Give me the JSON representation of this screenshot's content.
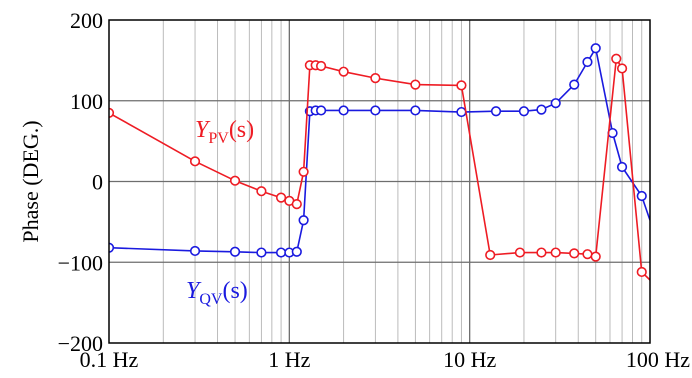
{
  "chart_data": {
    "type": "line",
    "title": "",
    "xlabel": "",
    "ylabel": "Phase (DEG.)",
    "x_scale": "log",
    "xlim": [
      0.1,
      100
    ],
    "ylim": [
      -200,
      200
    ],
    "grid": true,
    "x_ticks": [
      {
        "value": 0.1,
        "label": "0.1 Hz"
      },
      {
        "value": 1,
        "label": "1 Hz"
      },
      {
        "value": 10,
        "label": "10 Hz"
      },
      {
        "value": 100,
        "label": "100 Hz"
      }
    ],
    "y_ticks": [
      {
        "value": -200,
        "label": "−200"
      },
      {
        "value": -100,
        "label": "−100"
      },
      {
        "value": 0,
        "label": "0"
      },
      {
        "value": 100,
        "label": "100"
      },
      {
        "value": 200,
        "label": "200"
      }
    ],
    "series": [
      {
        "name": "YPV(s)",
        "label_parts": {
          "base": "Y",
          "sub": "PV",
          "arg": "(s)"
        },
        "color": "#ee1c24",
        "points": [
          [
            0.1,
            85
          ],
          [
            0.3,
            25
          ],
          [
            0.5,
            1
          ],
          [
            0.7,
            -12
          ],
          [
            0.9,
            -20
          ],
          [
            1.0,
            -24
          ],
          [
            1.1,
            -28
          ],
          [
            1.2,
            12
          ],
          [
            1.3,
            144
          ],
          [
            1.4,
            144
          ],
          [
            1.5,
            143
          ],
          [
            2.0,
            136
          ],
          [
            3.0,
            128
          ],
          [
            5.0,
            120
          ],
          [
            9.0,
            119
          ],
          [
            13.0,
            -91
          ],
          [
            19.0,
            -88
          ],
          [
            25.0,
            -88
          ],
          [
            30.0,
            -88
          ],
          [
            38.0,
            -89
          ],
          [
            45.0,
            -90
          ],
          [
            50.0,
            -93
          ],
          [
            65.0,
            152
          ],
          [
            70.0,
            140
          ],
          [
            90.0,
            -112
          ],
          [
            100.0,
            -122
          ]
        ],
        "markers": [
          [
            0.1,
            85
          ],
          [
            0.3,
            25
          ],
          [
            0.5,
            1
          ],
          [
            0.7,
            -12
          ],
          [
            0.9,
            -20
          ],
          [
            1.0,
            -24
          ],
          [
            1.1,
            -28
          ],
          [
            1.2,
            12
          ],
          [
            1.3,
            144
          ],
          [
            1.4,
            144
          ],
          [
            1.5,
            143
          ],
          [
            2.0,
            136
          ],
          [
            3.0,
            128
          ],
          [
            5.0,
            120
          ],
          [
            9.0,
            119
          ],
          [
            13.0,
            -91
          ],
          [
            19.0,
            -88
          ],
          [
            25.0,
            -88
          ],
          [
            30.0,
            -88
          ],
          [
            38.0,
            -89
          ],
          [
            45.0,
            -90
          ],
          [
            50.0,
            -93
          ],
          [
            65.0,
            152
          ],
          [
            70.0,
            140
          ],
          [
            90.0,
            -112
          ]
        ]
      },
      {
        "name": "YQV(s)",
        "label_parts": {
          "base": "Y",
          "sub": "QV",
          "arg": "(s)"
        },
        "color": "#1a1adf",
        "points": [
          [
            0.1,
            -82
          ],
          [
            0.3,
            -86
          ],
          [
            0.5,
            -87
          ],
          [
            0.7,
            -88
          ],
          [
            0.9,
            -88
          ],
          [
            1.0,
            -88
          ],
          [
            1.1,
            -87
          ],
          [
            1.2,
            -48
          ],
          [
            1.3,
            87
          ],
          [
            1.4,
            88
          ],
          [
            1.5,
            88
          ],
          [
            2.0,
            88
          ],
          [
            3.0,
            88
          ],
          [
            5.0,
            88
          ],
          [
            9.0,
            86
          ],
          [
            14.0,
            87
          ],
          [
            20.0,
            87
          ],
          [
            25.0,
            89
          ],
          [
            30.0,
            97
          ],
          [
            38.0,
            120
          ],
          [
            45.0,
            148
          ],
          [
            50.0,
            165
          ],
          [
            62.0,
            60
          ],
          [
            70.0,
            18
          ],
          [
            90.0,
            -18
          ],
          [
            100.0,
            -48
          ]
        ],
        "markers": [
          [
            0.1,
            -82
          ],
          [
            0.3,
            -86
          ],
          [
            0.5,
            -87
          ],
          [
            0.7,
            -88
          ],
          [
            0.9,
            -88
          ],
          [
            1.0,
            -88
          ],
          [
            1.1,
            -87
          ],
          [
            1.2,
            -48
          ],
          [
            1.3,
            87
          ],
          [
            1.4,
            88
          ],
          [
            1.5,
            88
          ],
          [
            2.0,
            88
          ],
          [
            3.0,
            88
          ],
          [
            5.0,
            88
          ],
          [
            9.0,
            86
          ],
          [
            14.0,
            87
          ],
          [
            20.0,
            87
          ],
          [
            25.0,
            89
          ],
          [
            30.0,
            97
          ],
          [
            38.0,
            120
          ],
          [
            45.0,
            148
          ],
          [
            50.0,
            165
          ],
          [
            62.0,
            60
          ],
          [
            70.0,
            18
          ],
          [
            90.0,
            -18
          ]
        ]
      }
    ]
  }
}
